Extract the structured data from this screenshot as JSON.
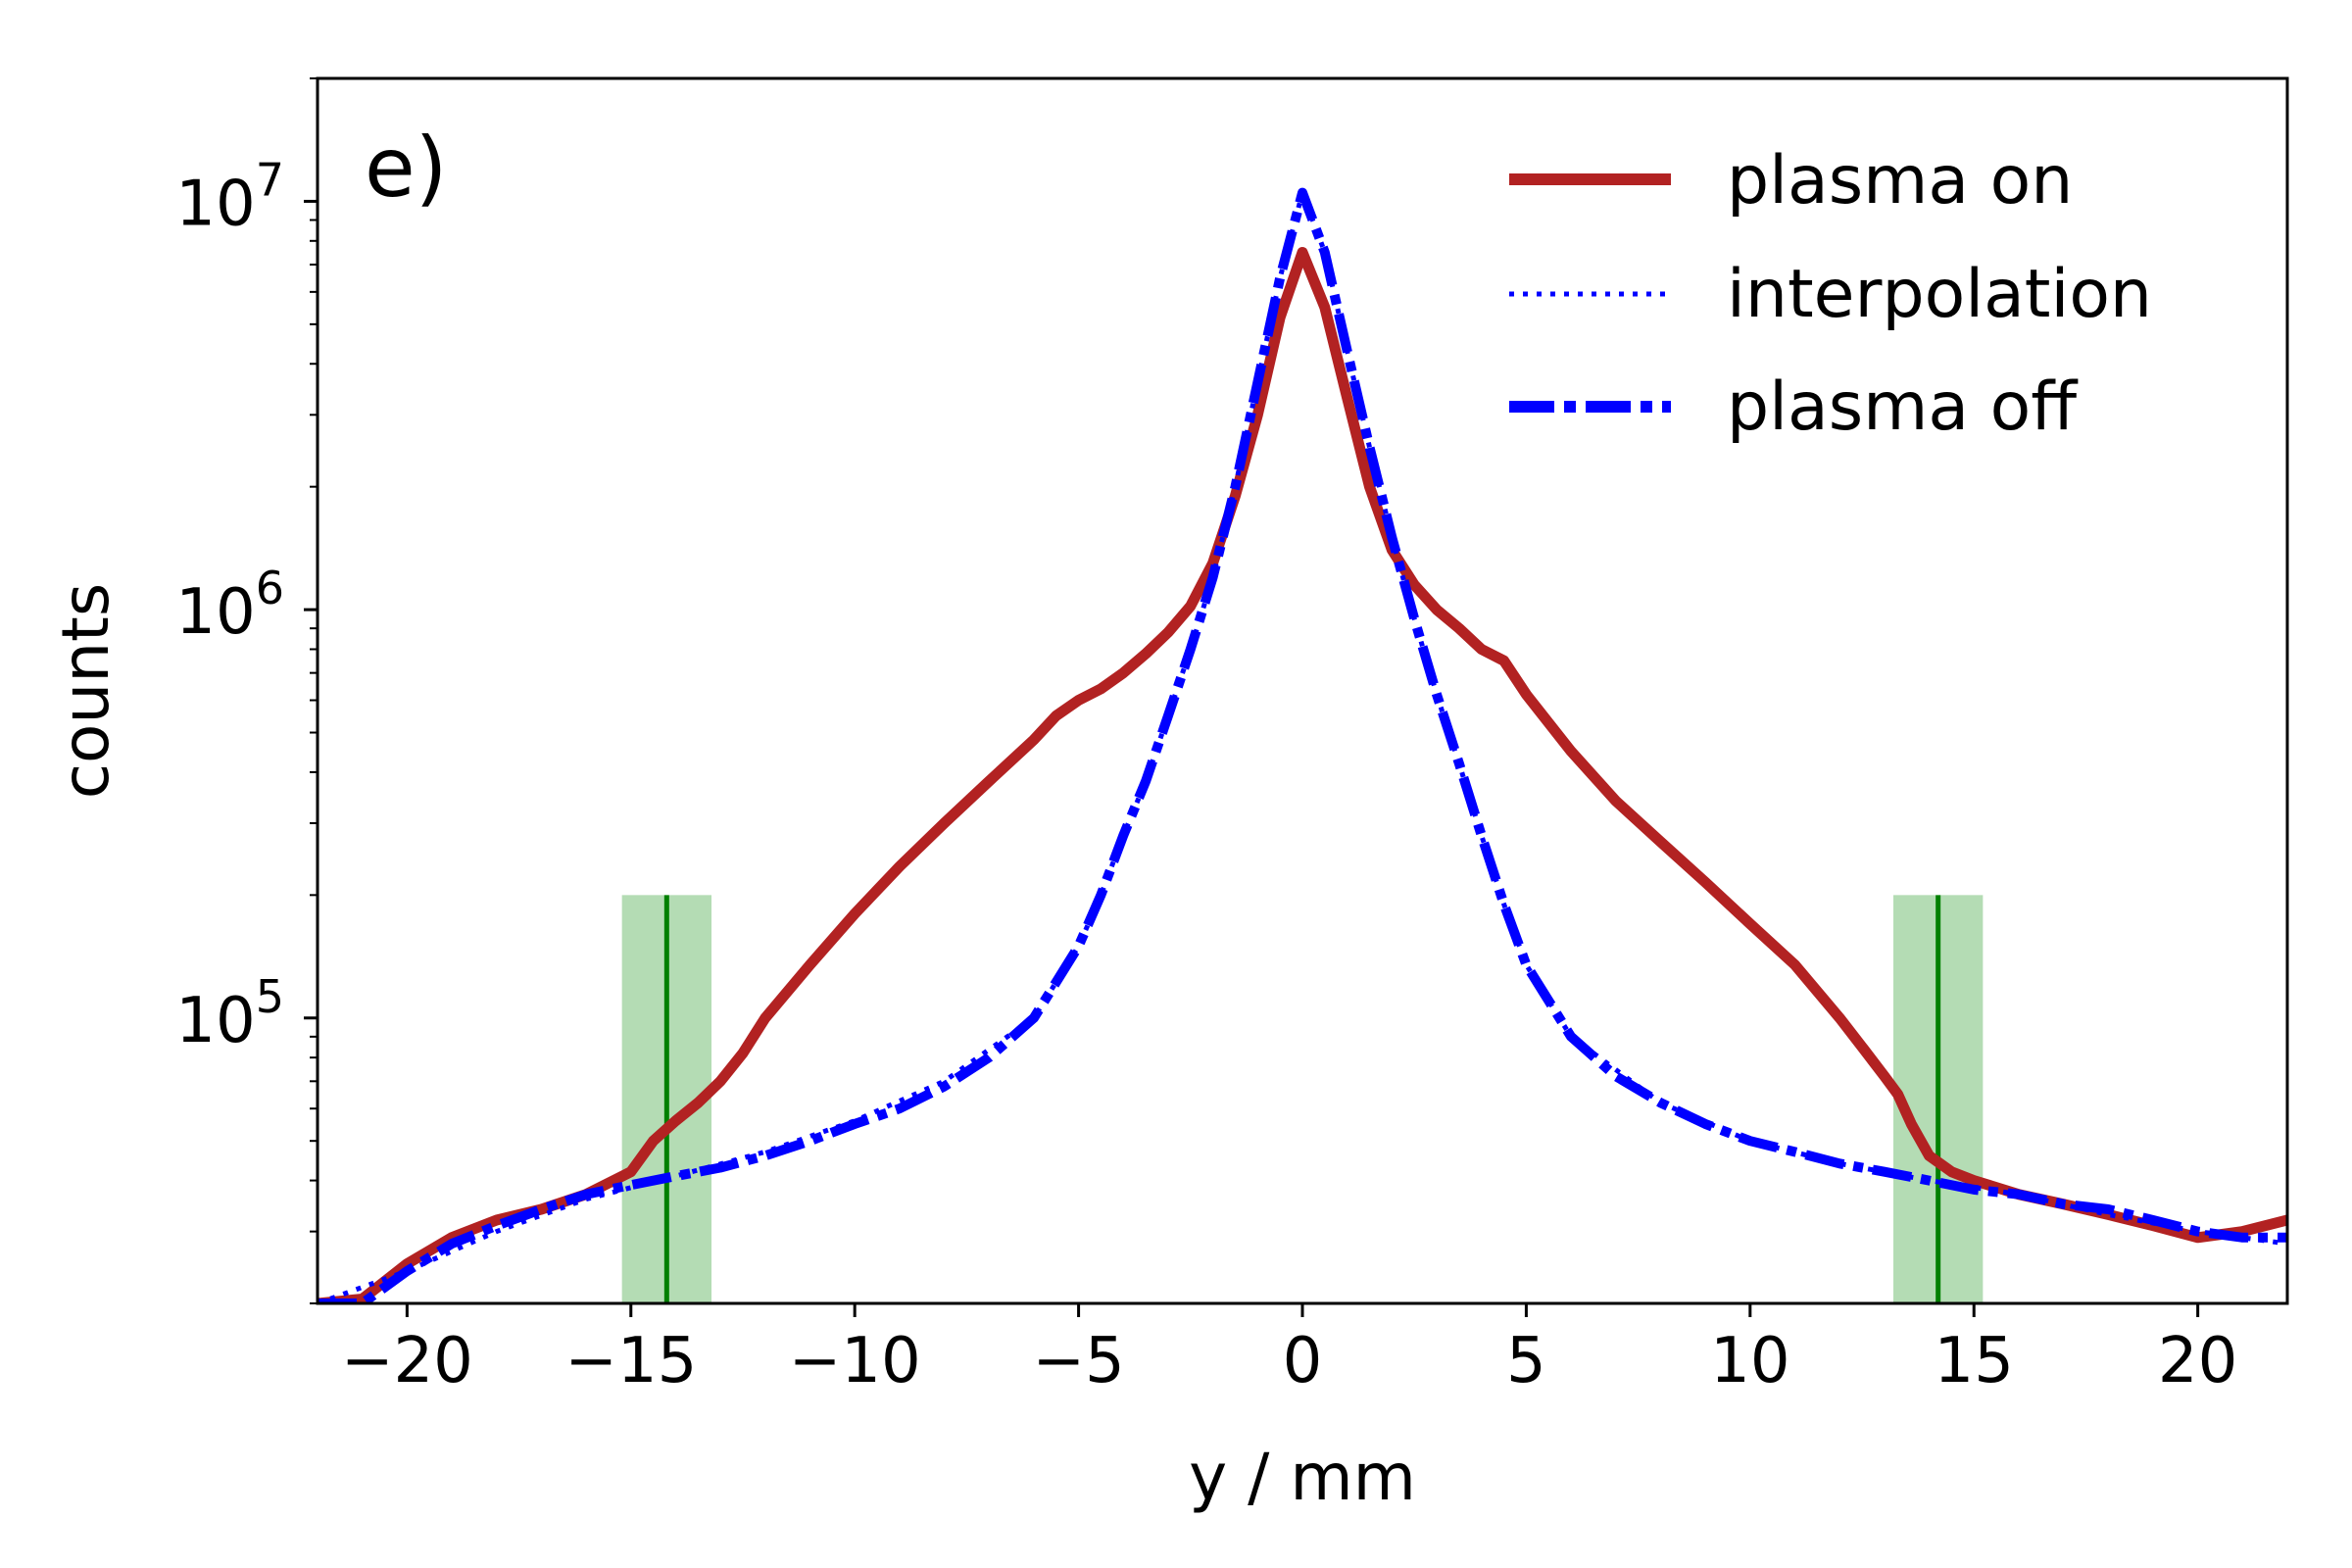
{
  "chart_data": {
    "type": "line",
    "panel_label": "e)",
    "xlabel": "y / mm",
    "ylabel": "counts",
    "xlim": [
      -22,
      22
    ],
    "ylim": [
      20000,
      20000000
    ],
    "yscale": "log",
    "grid": false,
    "legend_position": "top-right",
    "x_ticks": [
      {
        "value": -20,
        "label": "−20"
      },
      {
        "value": -15,
        "label": "−15"
      },
      {
        "value": -10,
        "label": "−10"
      },
      {
        "value": -5,
        "label": "−5"
      },
      {
        "value": 0,
        "label": "0"
      },
      {
        "value": 5,
        "label": "5"
      },
      {
        "value": 10,
        "label": "10"
      },
      {
        "value": 15,
        "label": "15"
      },
      {
        "value": 20,
        "label": "20"
      }
    ],
    "y_ticks": [
      {
        "value": 100000,
        "base": "10",
        "exp": "5"
      },
      {
        "value": 1000000,
        "base": "10",
        "exp": "6"
      },
      {
        "value": 10000000,
        "base": "10",
        "exp": "7"
      }
    ],
    "series": [
      {
        "name": "plasma on",
        "color": "#b22222",
        "style": "solid",
        "x": [
          -22,
          -21,
          -20,
          -19,
          -18,
          -17,
          -16,
          -15,
          -14.5,
          -14,
          -13.5,
          -13,
          -12.5,
          -12,
          -11,
          -10,
          -9,
          -8,
          -7,
          -6,
          -5.5,
          -5,
          -4.5,
          -4,
          -3.5,
          -3,
          -2.5,
          -2,
          -1.5,
          -1,
          -0.5,
          0,
          0.5,
          1,
          1.5,
          2,
          2.5,
          3,
          3.5,
          4,
          4.5,
          5,
          6,
          7,
          8,
          9,
          10,
          11,
          12,
          12.5,
          13,
          13.3,
          13.6,
          14,
          14.5,
          15,
          16,
          17,
          18,
          19,
          20,
          21,
          22
        ],
        "y": [
          20000,
          20500,
          25000,
          29000,
          32000,
          34000,
          37000,
          42000,
          50000,
          56000,
          62000,
          70000,
          82000,
          100000,
          135000,
          180000,
          235000,
          300000,
          380000,
          480000,
          550000,
          600000,
          640000,
          700000,
          780000,
          880000,
          1020000,
          1300000,
          1900000,
          3000000,
          5200000,
          7500000,
          5500000,
          3300000,
          2000000,
          1400000,
          1150000,
          1000000,
          900000,
          800000,
          750000,
          620000,
          450000,
          340000,
          270000,
          215000,
          170000,
          135000,
          100000,
          85000,
          72000,
          65000,
          55000,
          46000,
          42000,
          40000,
          37000,
          35000,
          33000,
          31000,
          29000,
          30000,
          32000
        ]
      },
      {
        "name": "interpolation",
        "color": "#0000ff",
        "style": "dotted",
        "x": [
          -22,
          -20,
          -18,
          -16,
          -14,
          -12,
          -10,
          -8,
          -6,
          -5,
          -4.5,
          -4,
          -3.5,
          -3,
          -2.5,
          -2,
          -1.5,
          -1,
          -0.5,
          0,
          0.5,
          1,
          1.5,
          2,
          2.5,
          3,
          3.5,
          4,
          4.5,
          5,
          6,
          8,
          10,
          12,
          14,
          16,
          18,
          20,
          22
        ],
        "y": [
          20000,
          24000,
          30000,
          36000,
          41000,
          47000,
          56000,
          70000,
          100000,
          150000,
          200000,
          280000,
          380000,
          550000,
          800000,
          1200000,
          2000000,
          3600000,
          6500000,
          10500000,
          7500000,
          4300000,
          2500000,
          1500000,
          950000,
          620000,
          420000,
          280000,
          190000,
          135000,
          90000,
          62000,
          50000,
          44000,
          40000,
          37000,
          33000,
          30000,
          28000
        ]
      },
      {
        "name": "plasma off",
        "color": "#0000ff",
        "style": "dashdot",
        "x": [
          -22,
          -21,
          -20,
          -19,
          -18,
          -17,
          -16,
          -15,
          -14,
          -13,
          -12,
          -11,
          -10,
          -9,
          -8,
          -7,
          -6,
          -5,
          -4.5,
          -4,
          -3.5,
          -3,
          -2.5,
          -2,
          -1.5,
          -1,
          -0.5,
          0,
          0.5,
          1,
          1.5,
          2,
          2.5,
          3,
          3.5,
          4,
          4.5,
          5,
          6,
          7,
          8,
          9,
          10,
          11,
          12,
          13,
          14,
          15,
          16,
          17,
          18,
          19,
          20,
          21,
          22
        ],
        "y": [
          20000,
          20000,
          24000,
          28000,
          31000,
          34000,
          37000,
          39000,
          41000,
          43000,
          46000,
          50000,
          55000,
          60000,
          68000,
          80000,
          100000,
          150000,
          200000,
          280000,
          380000,
          550000,
          800000,
          1200000,
          2000000,
          3600000,
          6500000,
          10500000,
          7500000,
          4300000,
          2500000,
          1500000,
          950000,
          620000,
          420000,
          280000,
          190000,
          135000,
          90000,
          72000,
          62000,
          55000,
          50000,
          47000,
          44000,
          42000,
          40000,
          38000,
          37000,
          35000,
          34000,
          32000,
          30000,
          29000,
          29000
        ]
      }
    ],
    "shaded_bands": [
      {
        "x_from": -15.2,
        "x_to": -13.2,
        "y_top": 200000,
        "color": "#b4dcb4"
      },
      {
        "x_from": 13.2,
        "x_to": 15.2,
        "y_top": 200000,
        "color": "#b4dcb4"
      }
    ],
    "vertical_lines": [
      {
        "x": -14.2,
        "y_top": 200000,
        "color": "#008000"
      },
      {
        "x": 14.2,
        "y_top": 200000,
        "color": "#008000"
      }
    ]
  }
}
